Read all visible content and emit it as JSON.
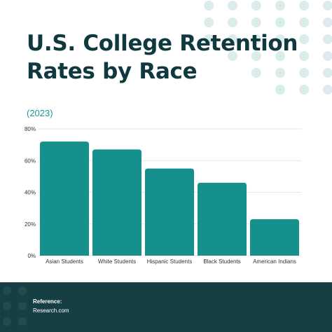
{
  "header": {
    "title_line1": "U.S. College Retention",
    "title_line2": "Rates by Race",
    "subtitle": "(2023)"
  },
  "footer": {
    "reference_label": "Reference:",
    "reference_source": "Research.com"
  },
  "colors": {
    "title": "#10393f",
    "accent": "#19999a",
    "bar": "#16908c",
    "footer_bg": "#163f43",
    "dots": "#dcebec"
  },
  "chart_data": {
    "type": "bar",
    "categories": [
      "Asian Students",
      "White Students",
      "Hispanic Students",
      "Black Students",
      "American Indians"
    ],
    "values": [
      72,
      67,
      55,
      46,
      23
    ],
    "yticks": [
      "0%",
      "20%",
      "40%",
      "60%",
      "80%"
    ],
    "ylim": [
      0,
      80
    ],
    "grid": true
  }
}
